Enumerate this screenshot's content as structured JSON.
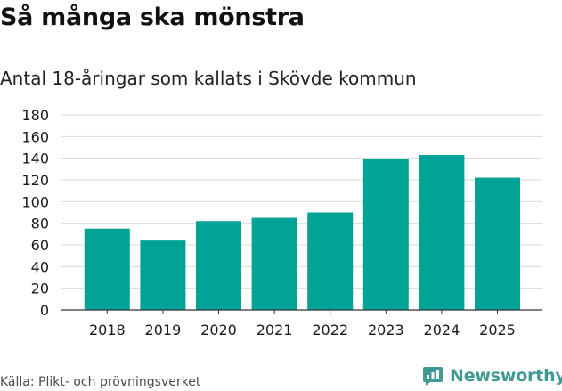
{
  "title": "Så många ska mönstra",
  "subtitle": "Antal 18-åringar som kallats i Skövde kommun",
  "source": "Källa: Plikt- och prövningsverket",
  "brand": "Newsworthy",
  "colors": {
    "bar": "#00a396",
    "grid": "#d9d9d9",
    "brand": "#3f9a91"
  },
  "chart_data": {
    "type": "bar",
    "title": "Så många ska mönstra",
    "subtitle": "Antal 18-åringar som kallats i Skövde kommun",
    "xlabel": "",
    "ylabel": "",
    "categories": [
      "2018",
      "2019",
      "2020",
      "2021",
      "2022",
      "2023",
      "2024",
      "2025"
    ],
    "values": [
      75,
      64,
      82,
      85,
      90,
      139,
      143,
      122
    ],
    "ylim": [
      0,
      180
    ],
    "yticks": [
      0,
      20,
      40,
      60,
      80,
      100,
      120,
      140,
      160,
      180
    ],
    "grid": true
  }
}
